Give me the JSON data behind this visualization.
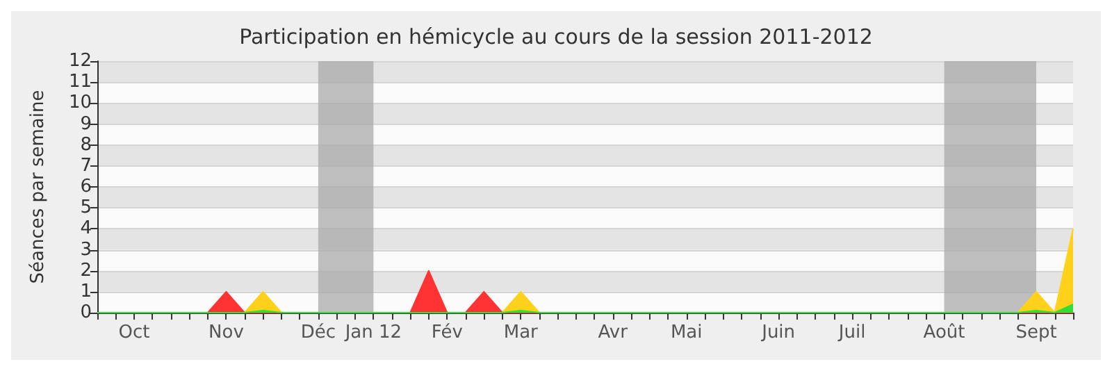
{
  "chart_data": {
    "type": "area",
    "title": "Participation en hémicycle au cours de la session 2011-2012",
    "ylabel": "Séances par semaine",
    "categories": [
      null,
      null,
      "Oct",
      null,
      null,
      null,
      null,
      "Nov",
      null,
      null,
      null,
      null,
      "Déc",
      null,
      null,
      "Jan 12",
      null,
      null,
      null,
      "Fév",
      null,
      null,
      null,
      "Mar",
      null,
      null,
      null,
      null,
      "Avr",
      null,
      null,
      null,
      "Mai",
      null,
      null,
      null,
      null,
      "Juin",
      null,
      null,
      null,
      "Juil",
      null,
      null,
      null,
      null,
      "Août",
      null,
      null,
      null,
      null,
      "Sept",
      null,
      null
    ],
    "series": [
      {
        "color": "#ff3333",
        "values": [
          0,
          0,
          0,
          0,
          0,
          0,
          0,
          1,
          0,
          0,
          0,
          0,
          0,
          0,
          0,
          0,
          0,
          0,
          2,
          0,
          0,
          1,
          0,
          0,
          0,
          0,
          0,
          0,
          0,
          0,
          0,
          0,
          0,
          0,
          0,
          0,
          0,
          0,
          0,
          0,
          0,
          0,
          0,
          0,
          0,
          0,
          0,
          0,
          0,
          0,
          0,
          0,
          0,
          0
        ]
      },
      {
        "color": "#ffd11a",
        "values": [
          0,
          0,
          0,
          0,
          0,
          0,
          0,
          0,
          0,
          1,
          0,
          0,
          0,
          0,
          0,
          0,
          0,
          0,
          0,
          0,
          0,
          0,
          0,
          1,
          0,
          0,
          0,
          0,
          0,
          0,
          0,
          0,
          0,
          0,
          0,
          0,
          0,
          0,
          0,
          0,
          0,
          0,
          0,
          0,
          0,
          0,
          0,
          0,
          0,
          0,
          0,
          1,
          0,
          4
        ]
      },
      {
        "color": "#33dd33",
        "values": [
          0,
          0,
          0,
          0,
          0,
          0,
          0,
          0,
          0,
          0.1,
          0,
          0,
          0,
          0,
          0,
          0,
          0,
          0,
          0,
          0,
          0,
          0,
          0,
          0.1,
          0,
          0,
          0,
          0,
          0,
          0,
          0,
          0,
          0,
          0,
          0,
          0,
          0,
          0,
          0,
          0,
          0,
          0,
          0,
          0,
          0,
          0,
          0,
          0,
          0,
          0,
          0,
          0.1,
          0,
          0.4
        ]
      }
    ],
    "ylim": [
      0,
      12
    ],
    "yticks": [
      0,
      1,
      2,
      3,
      4,
      5,
      6,
      7,
      8,
      9,
      10,
      11,
      12
    ],
    "grid": "y",
    "bands": [
      {
        "axis": "x",
        "from": "Déc",
        "to": "Jan 12",
        "color": "#aaaaaa"
      },
      {
        "axis": "x",
        "from": "Août",
        "to": "Sept",
        "color": "#aaaaaa"
      }
    ]
  }
}
